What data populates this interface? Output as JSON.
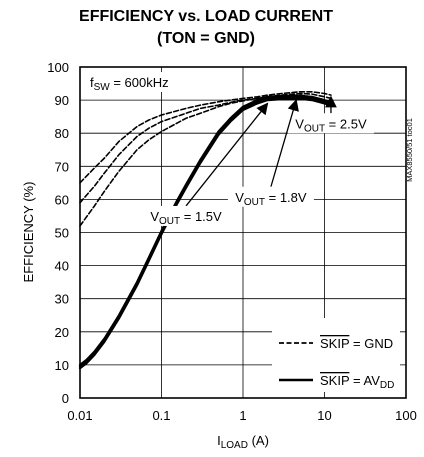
{
  "chart_data": {
    "type": "line",
    "title": "EFFICIENCY vs. LOAD CURRENT",
    "subtitle": "(TON = GND)",
    "xlabel": {
      "main": "I",
      "sub": "LOAD",
      "unit": " (A)"
    },
    "ylabel": "EFFICIENCY (%)",
    "xscale": "log",
    "xlim": [
      0.01,
      100
    ],
    "ylim": [
      0,
      100
    ],
    "grid": true,
    "x_tick_labels": [
      "0.01",
      "0.1",
      "1",
      "10",
      "100"
    ],
    "x_tick_values": [
      0.01,
      0.1,
      1,
      10,
      100
    ],
    "y_tick_labels": [
      "0",
      "10",
      "20",
      "30",
      "40",
      "50",
      "60",
      "70",
      "80",
      "90",
      "100"
    ],
    "y_tick_values": [
      0,
      10,
      20,
      30,
      40,
      50,
      60,
      70,
      80,
      90,
      100
    ],
    "fsw_label": {
      "main": "f",
      "sub": "SW",
      "rest": " = 600kHz"
    },
    "side_code": "MAX8550/51 toc01",
    "series": [
      {
        "group": "SKIP = GND",
        "style": "dashed",
        "x": [
          0.01,
          0.015,
          0.02,
          0.03,
          0.05,
          0.07,
          0.1,
          0.2,
          0.3,
          0.5,
          0.7,
          1,
          1.5,
          2,
          3,
          5,
          7,
          10,
          12
        ],
        "y": [
          65,
          69.5,
          72.5,
          77.5,
          82,
          84,
          85.5,
          87.5,
          88.5,
          89.5,
          90,
          90.5,
          91,
          91.5,
          92,
          92.5,
          92.5,
          92,
          91.5
        ]
      },
      {
        "group": "SKIP = GND",
        "style": "dashed",
        "x": [
          0.01,
          0.015,
          0.02,
          0.03,
          0.05,
          0.07,
          0.1,
          0.2,
          0.3,
          0.5,
          0.7,
          1,
          1.5,
          2,
          3,
          5,
          7,
          10,
          12
        ],
        "y": [
          59,
          64,
          68,
          73.5,
          79,
          81.5,
          83.5,
          86,
          87.5,
          88.5,
          89.3,
          90,
          90.5,
          91,
          91.5,
          92,
          91.8,
          91,
          90.5
        ]
      },
      {
        "group": "SKIP = GND",
        "style": "dashed",
        "x": [
          0.01,
          0.015,
          0.02,
          0.03,
          0.05,
          0.07,
          0.1,
          0.2,
          0.3,
          0.5,
          0.7,
          1,
          1.5,
          2,
          3,
          5,
          7,
          10,
          12
        ],
        "y": [
          52,
          58,
          62.5,
          68.5,
          75,
          78,
          80.5,
          84.5,
          86,
          88,
          89,
          89.8,
          90.5,
          91,
          91.3,
          91.5,
          91,
          90,
          89.5
        ]
      },
      {
        "group": "SKIP = AVDD",
        "style": "solid",
        "x": [
          0.01,
          0.012,
          0.015,
          0.02,
          0.03,
          0.05,
          0.07,
          0.1,
          0.15,
          0.2,
          0.3,
          0.5,
          0.7,
          1,
          1.5,
          2,
          3,
          5,
          7,
          10,
          12
        ],
        "y": [
          10,
          11.5,
          14,
          18,
          25,
          35,
          42.5,
          50.5,
          59,
          64.5,
          72,
          80.5,
          84.5,
          88,
          90,
          91,
          91.2,
          91.3,
          91,
          90,
          89.3
        ]
      },
      {
        "group": "SKIP = AVDD",
        "style": "solid",
        "x": [
          0.01,
          0.012,
          0.015,
          0.02,
          0.03,
          0.05,
          0.07,
          0.1,
          0.15,
          0.2,
          0.3,
          0.5,
          0.7,
          1,
          1.5,
          2,
          3,
          5,
          7,
          10,
          12
        ],
        "y": [
          9.5,
          11,
          13.5,
          17.5,
          24.5,
          34.5,
          42,
          50,
          58.5,
          64,
          71.5,
          80,
          84,
          87.5,
          89.5,
          90.5,
          90.8,
          90.9,
          90.5,
          89.5,
          88.8
        ]
      },
      {
        "group": "SKIP = AVDD",
        "style": "solid",
        "x": [
          0.01,
          0.012,
          0.015,
          0.02,
          0.03,
          0.05,
          0.07,
          0.1,
          0.15,
          0.2,
          0.3,
          0.5,
          0.7,
          1,
          1.5,
          2,
          3,
          5,
          7,
          10,
          12
        ],
        "y": [
          9,
          10.5,
          13,
          17,
          24,
          34,
          41.5,
          49.5,
          58,
          63.5,
          71,
          79.5,
          83.5,
          87,
          89,
          90,
          90.3,
          90.4,
          90,
          89,
          88.2
        ]
      }
    ],
    "annotations": [
      {
        "prefix": "V",
        "sub": "OUT",
        "text": " = 2.5V",
        "label_x": 12,
        "label_y": 83,
        "arrow_x": 12,
        "arrow_y": 91
      },
      {
        "prefix": "V",
        "sub": "OUT",
        "text": " = 1.8V",
        "label_x": 2.2,
        "label_y": 60.8,
        "arrow_x": 4.5,
        "arrow_y": 90
      },
      {
        "prefix": "V",
        "sub": "OUT",
        "text": " = 1.5V",
        "label_x": 0.2,
        "label_y": 55,
        "arrow_x": 2.0,
        "arrow_y": 89
      }
    ],
    "legend": {
      "position": "bottom-right",
      "items": [
        {
          "style": "dashed",
          "label_main": "SKIP",
          "label_rest": " = GND",
          "label_sub": ""
        },
        {
          "style": "solid",
          "label_main": "SKIP",
          "label_rest": " = AV",
          "label_sub": "DD"
        }
      ]
    }
  }
}
